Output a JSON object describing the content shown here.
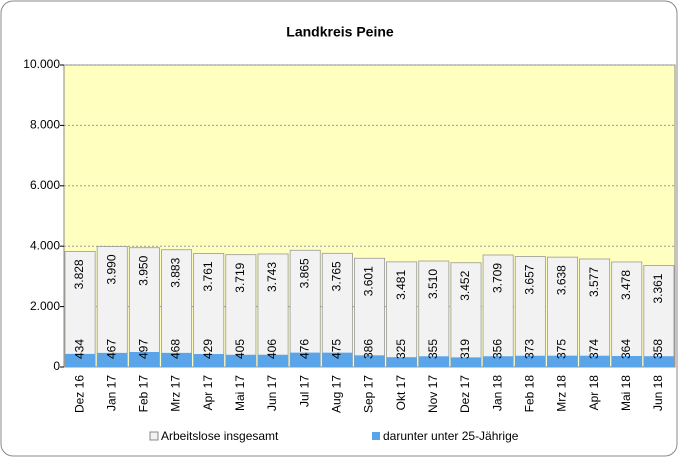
{
  "chart_data": {
    "type": "bar",
    "title": "Landkreis Peine",
    "categories": [
      "Dez 16",
      "Jan 17",
      "Feb 17",
      "Mrz 17",
      "Apr 17",
      "Mai 17",
      "Jun 17",
      "Jul 17",
      "Aug 17",
      "Sep 17",
      "Okt 17",
      "Nov 17",
      "Dez 17",
      "Jan 18",
      "Feb 18",
      "Mrz 18",
      "Apr 18",
      "Mai 18",
      "Jun 18"
    ],
    "series": [
      {
        "name": "Arbeitslose insgesamt",
        "color": "#f2f2f2",
        "values": [
          3828,
          3990,
          3950,
          3883,
          3761,
          3719,
          3743,
          3865,
          3765,
          3601,
          3481,
          3510,
          3452,
          3709,
          3657,
          3638,
          3577,
          3478,
          3361
        ],
        "value_labels": [
          "3.828",
          "3.990",
          "3.950",
          "3.883",
          "3.761",
          "3.719",
          "3.743",
          "3.865",
          "3.765",
          "3.601",
          "3.481",
          "3.510",
          "3.452",
          "3.709",
          "3.657",
          "3.638",
          "3.577",
          "3.478",
          "3.361"
        ]
      },
      {
        "name": "darunter unter 25-Jährige",
        "color": "#5aa5ea",
        "values": [
          434,
          467,
          497,
          468,
          429,
          405,
          406,
          476,
          475,
          386,
          325,
          355,
          319,
          356,
          373,
          375,
          374,
          364,
          358
        ]
      }
    ],
    "ylim": [
      0,
      10000
    ],
    "yticks": [
      0,
      {
        "value": 2000,
        "label": "2.000"
      },
      {
        "value": 4000,
        "label": "4.000"
      },
      {
        "value": 6000,
        "label": "6.000"
      },
      {
        "value": 8000,
        "label": "8.000"
      },
      {
        "value": 10000,
        "label": "10.000"
      }
    ],
    "grid": true
  }
}
